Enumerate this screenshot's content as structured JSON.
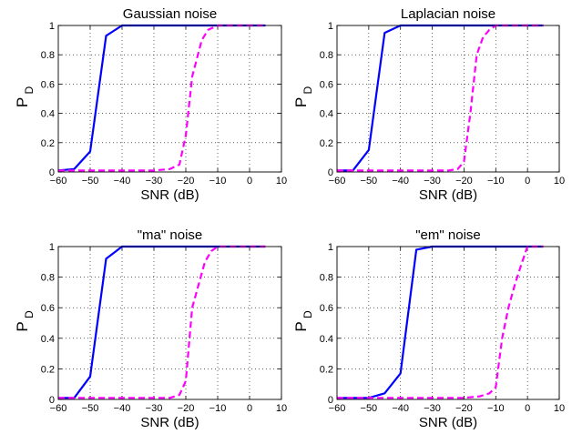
{
  "chart_data": [
    {
      "type": "line",
      "title": "Gaussian noise",
      "xlabel": "SNR (dB)",
      "ylabel": "P",
      "ylabel_sub": "D",
      "xlim": [
        -60,
        10
      ],
      "ylim": [
        0,
        1
      ],
      "xticks": [
        -60,
        -50,
        -40,
        -30,
        -20,
        -10,
        0,
        10
      ],
      "yticks": [
        0,
        0.2,
        0.4,
        0.6,
        0.8,
        1
      ],
      "xtick_labels": [
        "−60",
        "−50",
        "−40",
        "−30",
        "−20",
        "−10",
        "0",
        "10"
      ],
      "ytick_labels": [
        "0",
        "0.2",
        "0.4",
        "0.6",
        "0.8",
        "1"
      ],
      "grid": true,
      "series": [
        {
          "color": "#0000ff",
          "style": "solid",
          "x": [
            -60,
            -55,
            -50,
            -45,
            -40,
            -35,
            -30,
            -25,
            -20,
            -15,
            -10,
            -5,
            0,
            5
          ],
          "y": [
            0.01,
            0.02,
            0.14,
            0.93,
            1,
            1,
            1,
            1,
            1,
            1,
            1,
            1,
            1,
            1
          ]
        },
        {
          "color": "#ff00ff",
          "style": "dashed",
          "x": [
            -60,
            -55,
            -50,
            -45,
            -40,
            -35,
            -30,
            -25,
            -22,
            -20,
            -18,
            -15,
            -13,
            -10,
            -5,
            0,
            5
          ],
          "y": [
            0.01,
            0.01,
            0.01,
            0.01,
            0.01,
            0.01,
            0.01,
            0.02,
            0.05,
            0.25,
            0.65,
            0.9,
            0.97,
            1,
            1,
            1,
            1
          ]
        }
      ]
    },
    {
      "type": "line",
      "title": "Laplacian noise",
      "xlabel": "SNR (dB)",
      "ylabel": "P",
      "ylabel_sub": "D",
      "xlim": [
        -60,
        10
      ],
      "ylim": [
        0,
        1
      ],
      "xticks": [
        -60,
        -50,
        -40,
        -30,
        -20,
        -10,
        0,
        10
      ],
      "yticks": [
        0,
        0.2,
        0.4,
        0.6,
        0.8,
        1
      ],
      "xtick_labels": [
        "−60",
        "−50",
        "−40",
        "−30",
        "−20",
        "−10",
        "0",
        "10"
      ],
      "ytick_labels": [
        "0",
        "0.2",
        "0.4",
        "0.6",
        "0.8",
        "1"
      ],
      "grid": true,
      "series": [
        {
          "color": "#0000ff",
          "style": "solid",
          "x": [
            -60,
            -55,
            -50,
            -45,
            -40,
            -35,
            -30,
            -25,
            -20,
            -15,
            -10,
            -5,
            0,
            5
          ],
          "y": [
            0.01,
            0.01,
            0.15,
            0.95,
            1,
            1,
            1,
            1,
            1,
            1,
            1,
            1,
            1,
            1
          ]
        },
        {
          "color": "#ff00ff",
          "style": "dashed",
          "x": [
            -60,
            -55,
            -50,
            -45,
            -40,
            -35,
            -30,
            -25,
            -22,
            -20,
            -18,
            -16,
            -14,
            -12,
            -10,
            -5,
            0,
            5
          ],
          "y": [
            0.01,
            0.01,
            0.01,
            0.01,
            0.01,
            0.01,
            0.01,
            0.01,
            0.02,
            0.07,
            0.4,
            0.8,
            0.92,
            0.97,
            1,
            1,
            1,
            1
          ]
        }
      ]
    },
    {
      "type": "line",
      "title": "\"ma\" noise",
      "xlabel": "SNR (dB)",
      "ylabel": "P",
      "ylabel_sub": "D",
      "xlim": [
        -60,
        10
      ],
      "ylim": [
        0,
        1
      ],
      "xticks": [
        -60,
        -50,
        -40,
        -30,
        -20,
        -10,
        0,
        10
      ],
      "yticks": [
        0,
        0.2,
        0.4,
        0.6,
        0.8,
        1
      ],
      "xtick_labels": [
        "−60",
        "−50",
        "−40",
        "−30",
        "−20",
        "−10",
        "0",
        "10"
      ],
      "ytick_labels": [
        "0",
        "0.2",
        "0.4",
        "0.6",
        "0.8",
        "1"
      ],
      "grid": true,
      "series": [
        {
          "color": "#0000ff",
          "style": "solid",
          "x": [
            -60,
            -55,
            -50,
            -45,
            -40,
            -35,
            -30,
            -25,
            -20,
            -15,
            -10,
            -5,
            0,
            5
          ],
          "y": [
            0.01,
            0.01,
            0.15,
            0.92,
            1,
            1,
            1,
            1,
            1,
            1,
            1,
            1,
            1,
            1
          ]
        },
        {
          "color": "#ff00ff",
          "style": "dashed",
          "x": [
            -60,
            -55,
            -50,
            -45,
            -40,
            -35,
            -30,
            -25,
            -22,
            -20,
            -18,
            -16,
            -14,
            -12,
            -10,
            -5,
            0,
            5
          ],
          "y": [
            0.01,
            0.01,
            0.01,
            0.01,
            0.01,
            0.01,
            0.01,
            0.01,
            0.03,
            0.12,
            0.6,
            0.75,
            0.9,
            0.97,
            1,
            1,
            1,
            1
          ]
        }
      ]
    },
    {
      "type": "line",
      "title": "\"em\" noise",
      "xlabel": "SNR (dB)",
      "ylabel": "P",
      "ylabel_sub": "D",
      "xlim": [
        -60,
        10
      ],
      "ylim": [
        0,
        1
      ],
      "xticks": [
        -60,
        -50,
        -40,
        -30,
        -20,
        -10,
        0,
        10
      ],
      "yticks": [
        0,
        0.2,
        0.4,
        0.6,
        0.8,
        1
      ],
      "xtick_labels": [
        "−60",
        "−50",
        "−40",
        "−30",
        "−20",
        "−10",
        "0",
        "10"
      ],
      "ytick_labels": [
        "0",
        "0.2",
        "0.4",
        "0.6",
        "0.8",
        "1"
      ],
      "grid": true,
      "series": [
        {
          "color": "#0000ff",
          "style": "solid",
          "x": [
            -60,
            -55,
            -50,
            -45,
            -40,
            -35,
            -30,
            -25,
            -20,
            -15,
            -10,
            -5,
            0,
            5
          ],
          "y": [
            0.01,
            0.01,
            0.01,
            0.04,
            0.17,
            0.98,
            1,
            1,
            1,
            1,
            1,
            1,
            1,
            1
          ]
        },
        {
          "color": "#ff00ff",
          "style": "dashed",
          "x": [
            -60,
            -55,
            -50,
            -45,
            -40,
            -35,
            -30,
            -25,
            -20,
            -15,
            -12,
            -10,
            -8,
            -6,
            -4,
            -2,
            0,
            5
          ],
          "y": [
            0.01,
            0.01,
            0.01,
            0.01,
            0.01,
            0.01,
            0.01,
            0.01,
            0.01,
            0.02,
            0.04,
            0.08,
            0.4,
            0.6,
            0.75,
            0.88,
            1,
            1
          ]
        }
      ]
    }
  ]
}
